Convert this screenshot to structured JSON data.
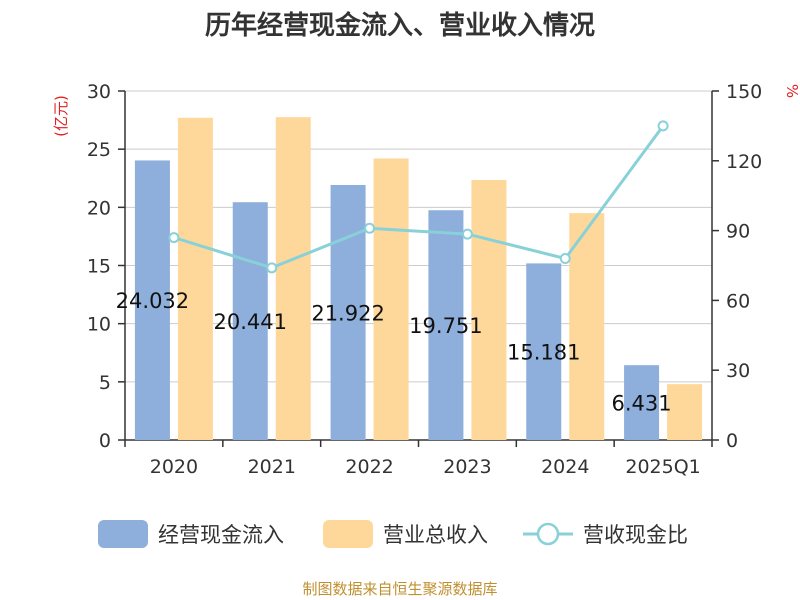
{
  "chart_data": {
    "type": "bar",
    "title": "历年经营现金流入、营业收入情况",
    "categories": [
      "2020",
      "2021",
      "2022",
      "2023",
      "2024",
      "2025Q1"
    ],
    "y_left": {
      "unit": "(亿元)",
      "ticks": [
        "0",
        "5",
        "10",
        "15",
        "20",
        "25",
        "30"
      ],
      "range": [
        0,
        30
      ]
    },
    "y_right": {
      "unit": "%",
      "ticks": [
        "0",
        "30",
        "60",
        "90",
        "120",
        "150"
      ],
      "range": [
        0,
        150
      ]
    },
    "series": [
      {
        "name": "经营现金流入",
        "kind": "bar",
        "axis": "left",
        "color": "#8eaedc",
        "values": [
          24.03,
          20.44,
          21.92,
          19.75,
          15.18,
          6.43
        ],
        "labels": [
          "24.032",
          "20.441",
          "21.922",
          "19.751",
          "15.181",
          "6.431"
        ]
      },
      {
        "name": "营业总收入",
        "kind": "bar",
        "axis": "left",
        "color": "#fdd89a",
        "values": [
          27.7,
          27.75,
          24.2,
          22.35,
          19.5,
          4.8
        ]
      },
      {
        "name": "营收现金比",
        "kind": "line",
        "axis": "right",
        "color": "#88d1d8",
        "values": [
          87,
          74,
          91,
          88.5,
          78,
          135
        ]
      }
    ],
    "unit_color": "#e02020",
    "grid": true,
    "legend_position": "bottom",
    "source": "制图数据来自恒生聚源数据库",
    "source_color": "#c09030"
  }
}
